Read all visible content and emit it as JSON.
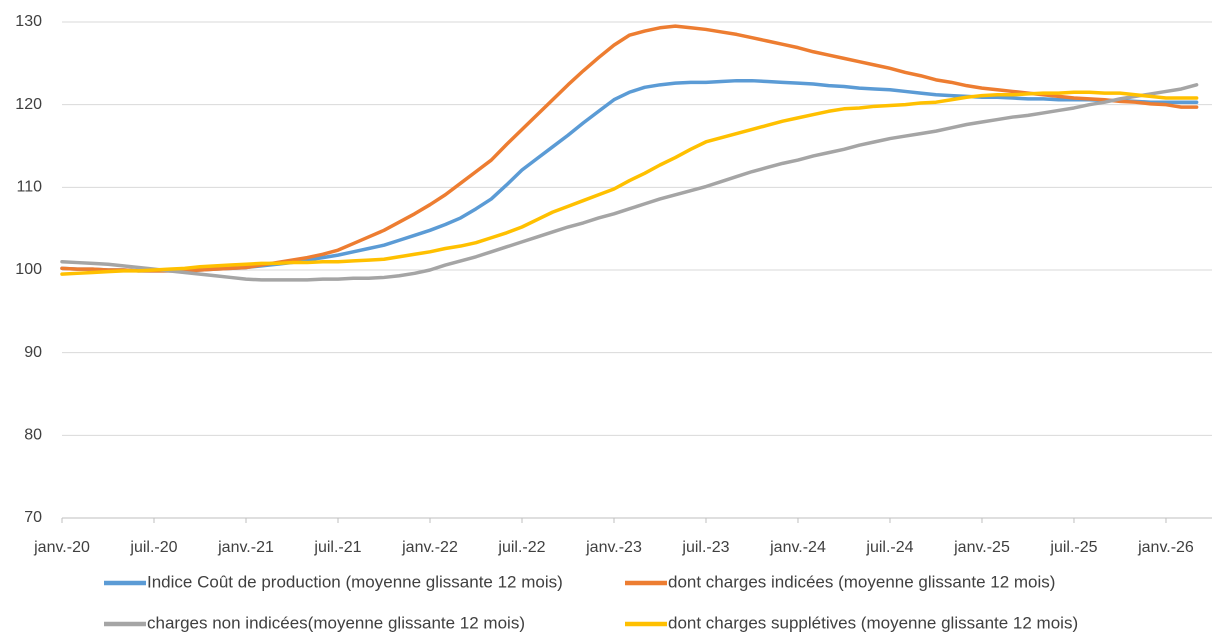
{
  "chart_data": {
    "type": "line",
    "categories": [
      "janv.-20",
      null,
      null,
      null,
      null,
      null,
      "juil.-20",
      null,
      null,
      null,
      null,
      null,
      "janv.-21",
      null,
      null,
      null,
      null,
      null,
      "juil.-21",
      null,
      null,
      null,
      null,
      null,
      "janv.-22",
      null,
      null,
      null,
      null,
      null,
      "juil.-22",
      null,
      null,
      null,
      null,
      null,
      "janv.-23",
      null,
      null,
      null,
      null,
      null,
      "juil.-23",
      null,
      null,
      null,
      null,
      null,
      "janv.-24",
      null,
      null,
      null,
      null,
      null,
      "juil.-24",
      null,
      null,
      null,
      null,
      null,
      "janv.-25",
      null,
      null,
      null,
      null,
      null,
      "juil.-25",
      null,
      null,
      null,
      null,
      null,
      "janv.-26",
      null,
      null
    ],
    "series": [
      {
        "name": "Indice Coût de production (moyenne glissante 12 mois)",
        "color": "#5b9bd5",
        "values": [
          100.2,
          100.1,
          100.1,
          100.0,
          100.0,
          99.9,
          99.9,
          99.9,
          99.9,
          100.0,
          100.1,
          100.2,
          100.3,
          100.5,
          100.7,
          100.9,
          101.2,
          101.5,
          101.8,
          102.2,
          102.6,
          103.0,
          103.6,
          104.2,
          104.8,
          105.5,
          106.3,
          107.4,
          108.6,
          110.3,
          112.1,
          113.5,
          114.9,
          116.3,
          117.8,
          119.2,
          120.6,
          121.5,
          122.1,
          122.4,
          122.6,
          122.7,
          122.7,
          122.8,
          122.9,
          122.9,
          122.8,
          122.7,
          122.6,
          122.5,
          122.3,
          122.2,
          122.0,
          121.9,
          121.8,
          121.6,
          121.4,
          121.2,
          121.1,
          121.0,
          120.9,
          120.9,
          120.8,
          120.7,
          120.7,
          120.6,
          120.6,
          120.6,
          120.5,
          120.5,
          120.4,
          120.3,
          120.3,
          120.3,
          120.3
        ]
      },
      {
        "name": "dont charges indicées (moyenne glissante 12 mois)",
        "color": "#ed7d31",
        "values": [
          100.2,
          100.1,
          100.1,
          100.0,
          100.0,
          99.9,
          99.9,
          99.9,
          99.9,
          100.0,
          100.1,
          100.2,
          100.3,
          100.6,
          100.9,
          101.2,
          101.5,
          101.9,
          102.4,
          103.2,
          104.0,
          104.8,
          105.8,
          106.8,
          107.9,
          109.1,
          110.5,
          111.9,
          113.3,
          115.2,
          117.0,
          118.8,
          120.6,
          122.4,
          124.1,
          125.7,
          127.2,
          128.4,
          128.9,
          129.3,
          129.5,
          129.3,
          129.1,
          128.8,
          128.5,
          128.1,
          127.7,
          127.3,
          126.9,
          126.4,
          126.0,
          125.6,
          125.2,
          124.8,
          124.4,
          123.9,
          123.5,
          123.0,
          122.7,
          122.3,
          122.0,
          121.8,
          121.6,
          121.4,
          121.2,
          121.0,
          120.8,
          120.7,
          120.6,
          120.4,
          120.3,
          120.1,
          120.0,
          119.7,
          119.7
        ]
      },
      {
        "name": "charges non indicées(moyenne glissante 12 mois)",
        "color": "#a5a5a5",
        "values": [
          101.0,
          100.9,
          100.8,
          100.7,
          100.5,
          100.3,
          100.1,
          99.9,
          99.7,
          99.5,
          99.3,
          99.1,
          98.9,
          98.8,
          98.8,
          98.8,
          98.8,
          98.9,
          98.9,
          99.0,
          99.0,
          99.1,
          99.3,
          99.6,
          100.0,
          100.6,
          101.1,
          101.6,
          102.2,
          102.8,
          103.4,
          104.0,
          104.6,
          105.2,
          105.7,
          106.3,
          106.8,
          107.4,
          108.0,
          108.6,
          109.1,
          109.6,
          110.1,
          110.7,
          111.3,
          111.9,
          112.4,
          112.9,
          113.3,
          113.8,
          114.2,
          114.6,
          115.1,
          115.5,
          115.9,
          116.2,
          116.5,
          116.8,
          117.2,
          117.6,
          117.9,
          118.2,
          118.5,
          118.7,
          119.0,
          119.3,
          119.6,
          120.0,
          120.3,
          120.7,
          121.0,
          121.3,
          121.6,
          121.9,
          122.4
        ]
      },
      {
        "name": "dont charges supplétives (moyenne glissante 12 mois)",
        "color": "#ffc000",
        "values": [
          99.5,
          99.6,
          99.7,
          99.8,
          99.9,
          99.9,
          100.0,
          100.1,
          100.2,
          100.4,
          100.5,
          100.6,
          100.7,
          100.8,
          100.8,
          100.9,
          100.9,
          101.0,
          101.0,
          101.1,
          101.2,
          101.3,
          101.6,
          101.9,
          102.2,
          102.6,
          102.9,
          103.3,
          103.9,
          104.5,
          105.2,
          106.1,
          107.0,
          107.7,
          108.4,
          109.1,
          109.8,
          110.8,
          111.7,
          112.7,
          113.6,
          114.6,
          115.5,
          116.0,
          116.5,
          117.0,
          117.5,
          118.0,
          118.4,
          118.8,
          119.2,
          119.5,
          119.6,
          119.8,
          119.9,
          120.0,
          120.2,
          120.3,
          120.6,
          120.9,
          121.1,
          121.2,
          121.2,
          121.3,
          121.4,
          121.4,
          121.5,
          121.5,
          121.4,
          121.4,
          121.2,
          121.0,
          120.8,
          120.8,
          120.8
        ]
      }
    ],
    "ylim": [
      70,
      130
    ],
    "yticks": [
      70,
      80,
      90,
      100,
      110,
      120,
      130
    ],
    "grid": true
  }
}
